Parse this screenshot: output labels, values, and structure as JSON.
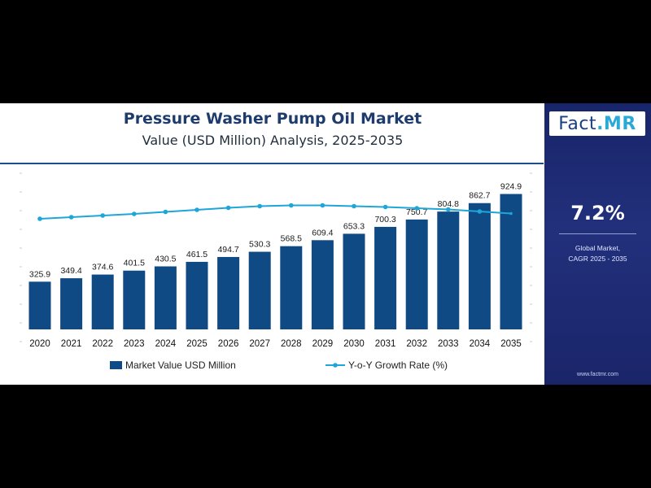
{
  "title": "Pressure Washer Pump Oil Market",
  "subtitle": "Value (USD Million) Analysis, 2025-2035",
  "brand": {
    "logo_part1": "Fact",
    "logo_part2": ".MR",
    "website": "www.factmr.com"
  },
  "cagr": {
    "value": "7.2%",
    "label_line1": "Global Market,",
    "label_line2": "CAGR 2025 - 2035"
  },
  "colors": {
    "bar": "#104a84",
    "line": "#1ea6d8",
    "panel": "#1c2a70",
    "title": "#1d3b6d"
  },
  "chart_data": {
    "type": "bar",
    "categories": [
      "2020",
      "2021",
      "2022",
      "2023",
      "2024",
      "2025",
      "2026",
      "2027",
      "2028",
      "2029",
      "2030",
      "2031",
      "2032",
      "2033",
      "2034",
      "2035"
    ],
    "series": [
      {
        "name": "Market Value USD Million",
        "type": "bar",
        "values": [
          325.9,
          349.4,
          374.6,
          401.5,
          430.5,
          461.5,
          494.7,
          530.3,
          568.5,
          609.4,
          653.3,
          700.3,
          750.7,
          804.8,
          862.7,
          924.9
        ]
      },
      {
        "name": "Y-o-Y Growth Rate (%)",
        "type": "line",
        "values": [
          6.8,
          7.0,
          7.2,
          7.4,
          7.65,
          7.9,
          8.15,
          8.35,
          8.45,
          8.45,
          8.35,
          8.25,
          8.1,
          7.95,
          7.7,
          7.45
        ]
      }
    ],
    "bar_labels": [
      "325.9",
      "349.4",
      "374.6",
      "401.5",
      "430.5",
      "461.5",
      "494.7",
      "530.3",
      "568.5",
      "609.4",
      "653.3",
      "700.3",
      "750.7",
      "804.8",
      "862.7",
      "924.9"
    ],
    "ylim": [
      0,
      1000
    ],
    "ylim_right": [
      0,
      10
    ],
    "grid": false,
    "legend_position": "bottom"
  }
}
